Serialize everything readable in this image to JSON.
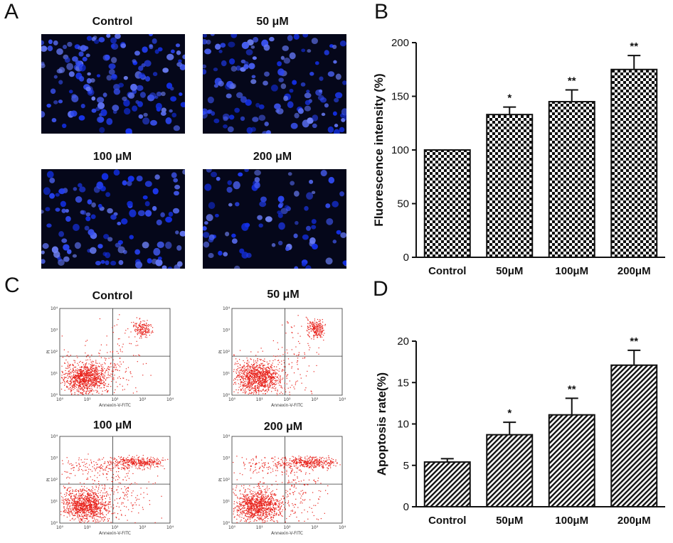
{
  "panels": {
    "A": {
      "letter": "A",
      "images": [
        {
          "label": "Control",
          "density": 1.0
        },
        {
          "label": "50 μM",
          "density": 0.85
        },
        {
          "label": "100 μM",
          "density": 0.75
        },
        {
          "label": "200 μM",
          "density": 0.55
        }
      ]
    },
    "B": {
      "letter": "B"
    },
    "C": {
      "letter": "C",
      "plots": [
        {
          "label": "Control"
        },
        {
          "label": "50 μM"
        },
        {
          "label": "100 μM"
        },
        {
          "label": "200 μM"
        }
      ],
      "y_axis_label": "PI",
      "x_axis_label": "Annexin-V-FITC",
      "tick_labels": [
        "10⁰",
        "10¹",
        "10²",
        "10³",
        "10⁴"
      ]
    },
    "D": {
      "letter": "D"
    }
  },
  "chart_data": [
    {
      "panel": "B",
      "type": "bar",
      "categories": [
        "Control",
        "50μM",
        "100μM",
        "200μM"
      ],
      "values": [
        100,
        133,
        145,
        175
      ],
      "errors": [
        0,
        7,
        11,
        13
      ],
      "significance": [
        "",
        "*",
        "**",
        "**"
      ],
      "ylabel": "Fluorescence intensity (%)",
      "ylim": [
        0,
        200
      ],
      "yticks": [
        0,
        50,
        100,
        150,
        200
      ],
      "pattern": "checkerboard"
    },
    {
      "panel": "D",
      "type": "bar",
      "categories": [
        "Control",
        "50μM",
        "100μM",
        "200μM"
      ],
      "values": [
        5.4,
        8.7,
        11.1,
        17.1
      ],
      "errors": [
        0.4,
        1.5,
        2.0,
        1.8
      ],
      "significance": [
        "",
        "*",
        "**",
        "**"
      ],
      "ylabel": "Apoptosis rate(%)",
      "ylim": [
        0,
        20
      ],
      "yticks": [
        0,
        5,
        10,
        15,
        20
      ],
      "pattern": "diagonal-hatch"
    }
  ]
}
